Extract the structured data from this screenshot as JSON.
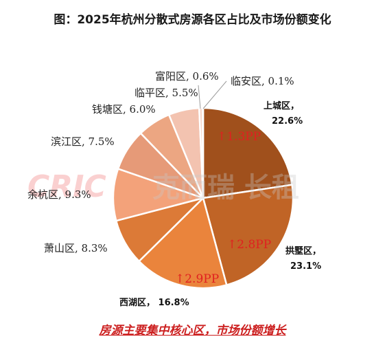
{
  "title": "图：2025年杭州分散式房源各区占比及市场份额变化",
  "footer": "房源主要集中核心区，市场份额增长",
  "watermark": {
    "logo": "CRIC",
    "text": "克而瑞 长租"
  },
  "chart_data": {
    "type": "pie",
    "title": "图：2025年杭州分散式房源各区占比及市场份额变化",
    "unit": "%",
    "slices": [
      {
        "name": "上城区",
        "value": 22.6,
        "label": "上城区，",
        "value_label": "22.6%",
        "change": "↑1.3PP",
        "color": "#a0501c"
      },
      {
        "name": "拱墅区",
        "value": 23.1,
        "label": "拱墅区，",
        "value_label": "23.1%",
        "change": "↑2.8PP",
        "color": "#c06426"
      },
      {
        "name": "西湖区",
        "value": 16.8,
        "label": "西湖区， 16.8%",
        "change": "↑2.9PP",
        "color": "#ea843c"
      },
      {
        "name": "萧山区",
        "value": 8.3,
        "label": "萧山区, 8.3%",
        "color": "#dc7a37"
      },
      {
        "name": "余杭区",
        "value": 9.3,
        "label": "余杭区, 9.3%",
        "color": "#f3a27a"
      },
      {
        "name": "滨江区",
        "value": 7.5,
        "label": "滨江区, 7.5%",
        "color": "#e69a78"
      },
      {
        "name": "钱塘区",
        "value": 6.0,
        "label": "钱塘区, 6.0%",
        "color": "#eca682"
      },
      {
        "name": "临平区",
        "value": 5.5,
        "label": "临平区, 5.5%",
        "color": "#f3c3b0"
      },
      {
        "name": "富阳区",
        "value": 0.6,
        "label": "富阳区, 0.6%",
        "color": "#f6d6c8"
      },
      {
        "name": "临安区",
        "value": 0.1,
        "label": "临安区, 0.1%",
        "color": "#f8e2d8"
      }
    ]
  }
}
